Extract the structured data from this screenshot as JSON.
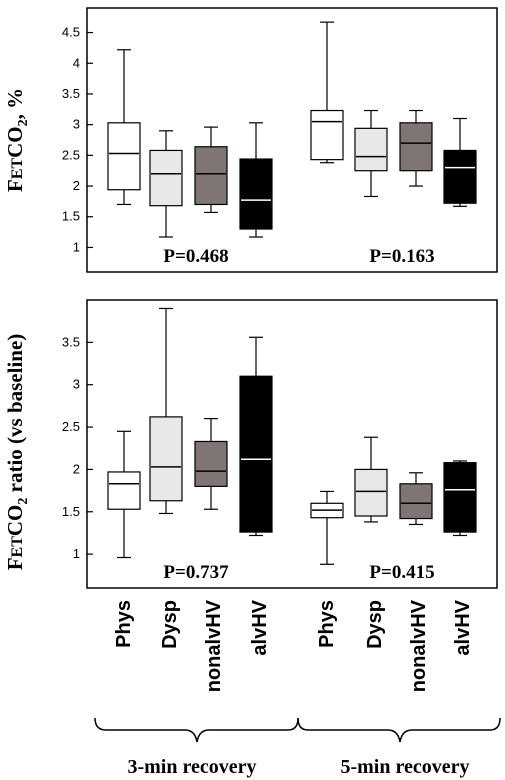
{
  "chart_data": [
    {
      "type": "boxplot",
      "ylabel": "FETCO2, %",
      "ylim": [
        0.6,
        4.9
      ],
      "yticks": [
        1,
        1.5,
        2,
        2.5,
        3,
        3.5,
        4,
        4.5
      ],
      "categories": [
        "Phys",
        "Dysp",
        "nonalvHV",
        "alvHV"
      ],
      "groups": [
        {
          "p_value": "P=0.468",
          "boxes": [
            {
              "category": "Phys",
              "min": 1.7,
              "q1": 1.94,
              "median": 2.53,
              "q3": 3.03,
              "max": 4.22
            },
            {
              "category": "Dysp",
              "min": 1.17,
              "q1": 1.68,
              "median": 2.2,
              "q3": 2.58,
              "max": 2.9
            },
            {
              "category": "nonalvHV",
              "min": 1.57,
              "q1": 1.7,
              "median": 2.2,
              "q3": 2.64,
              "max": 2.96
            },
            {
              "category": "alvHV",
              "min": 1.17,
              "q1": 1.3,
              "median": 1.77,
              "q3": 2.44,
              "max": 3.03
            }
          ]
        },
        {
          "p_value": "P=0.163",
          "boxes": [
            {
              "category": "Phys",
              "min": 2.38,
              "q1": 2.43,
              "median": 3.05,
              "q3": 3.23,
              "max": 4.67
            },
            {
              "category": "Dysp",
              "min": 1.83,
              "q1": 2.25,
              "median": 2.48,
              "q3": 2.94,
              "max": 3.23
            },
            {
              "category": "nonalvHV",
              "min": 2.0,
              "q1": 2.25,
              "median": 2.7,
              "q3": 3.03,
              "max": 3.23
            },
            {
              "category": "alvHV",
              "min": 1.67,
              "q1": 1.72,
              "median": 2.3,
              "q3": 2.58,
              "max": 3.1
            }
          ]
        }
      ]
    },
    {
      "type": "boxplot",
      "ylabel": "FETCO2 ratio (vs baseline)",
      "ylim": [
        0.6,
        4.0
      ],
      "yticks": [
        1,
        1.5,
        2,
        2.5,
        3,
        3.5
      ],
      "categories": [
        "Phys",
        "Dysp",
        "nonalvHV",
        "alvHV"
      ],
      "groups": [
        {
          "p_value": "P=0.737",
          "boxes": [
            {
              "category": "Phys",
              "min": 0.96,
              "q1": 1.53,
              "median": 1.83,
              "q3": 1.97,
              "max": 2.45
            },
            {
              "category": "Dysp",
              "min": 1.48,
              "q1": 1.63,
              "median": 2.03,
              "q3": 2.62,
              "max": 3.9
            },
            {
              "category": "nonalvHV",
              "min": 1.53,
              "q1": 1.8,
              "median": 1.98,
              "q3": 2.33,
              "max": 2.6
            },
            {
              "category": "alvHV",
              "min": 1.22,
              "q1": 1.26,
              "median": 2.12,
              "q3": 3.1,
              "max": 3.56
            }
          ]
        },
        {
          "p_value": "P=0.415",
          "boxes": [
            {
              "category": "Phys",
              "min": 0.88,
              "q1": 1.43,
              "median": 1.52,
              "q3": 1.6,
              "max": 1.74
            },
            {
              "category": "Dysp",
              "min": 1.38,
              "q1": 1.45,
              "median": 1.74,
              "q3": 2.0,
              "max": 2.38
            },
            {
              "category": "nonalvHV",
              "min": 1.35,
              "q1": 1.42,
              "median": 1.6,
              "q3": 1.83,
              "max": 1.96
            },
            {
              "category": "alvHV",
              "min": 1.22,
              "q1": 1.26,
              "median": 1.76,
              "q3": 2.08,
              "max": 2.1
            }
          ]
        }
      ]
    }
  ],
  "x_labels": [
    "Phys",
    "Dysp",
    "nonalvHV",
    "alvHV",
    "Phys",
    "Dysp",
    "nonalvHV",
    "alvHV"
  ],
  "group_labels": [
    "3-min recovery",
    "5-min recovery"
  ],
  "fill_colors": {
    "Phys": "#ffffff",
    "Dysp": "#e8e8e8",
    "nonalvHV": "#807575",
    "alvHV": "#000000"
  },
  "median_colors": {
    "Phys": "#000000",
    "Dysp": "#000000",
    "nonalvHV": "#000000",
    "alvHV": "#ffffff"
  }
}
